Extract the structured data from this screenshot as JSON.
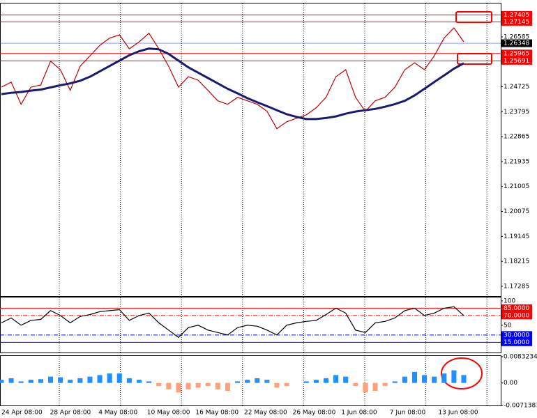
{
  "chart_data": [
    {
      "type": "line",
      "ylim": [
        1.1692,
        1.2783
      ],
      "yticks": [
        1.26585,
        1.24725,
        1.23795,
        1.22865,
        1.21935,
        1.21005,
        1.20075,
        1.19145,
        1.18215,
        1.17285
      ],
      "series": [
        {
          "color": "#c00000",
          "values": [
            1.2471,
            1.249,
            1.2407,
            1.2471,
            1.2479,
            1.2568,
            1.2536,
            1.2459,
            1.2549,
            1.2588,
            1.2627,
            1.2654,
            1.2666,
            1.2614,
            1.264,
            1.2672,
            1.2614,
            1.2549,
            1.2471,
            1.251,
            1.2497,
            1.2459,
            1.242,
            1.2407,
            1.2433,
            1.242,
            1.2407,
            1.2381,
            1.2316,
            1.2342,
            1.2355,
            1.2368,
            1.2394,
            1.2433,
            1.251,
            1.2536,
            1.2433,
            1.2381,
            1.242,
            1.2433,
            1.2471,
            1.2536,
            1.2562,
            1.2536,
            1.2588,
            1.2654,
            1.2692,
            1.264
          ]
        },
        {
          "color": "#1a1a6e",
          "values": [
            1.2445,
            1.245,
            1.2453,
            1.2458,
            1.2462,
            1.247,
            1.2478,
            1.2485,
            1.2495,
            1.251,
            1.253,
            1.255,
            1.257,
            1.259,
            1.2605,
            1.2615,
            1.2612,
            1.2595,
            1.257,
            1.2545,
            1.2525,
            1.2505,
            1.2485,
            1.2465,
            1.2448,
            1.243,
            1.2415,
            1.24,
            1.2385,
            1.237,
            1.236,
            1.2352,
            1.2352,
            1.2356,
            1.2362,
            1.2372,
            1.238,
            1.2385,
            1.239,
            1.2398,
            1.2408,
            1.242,
            1.244,
            1.2465,
            1.249,
            1.2515,
            1.254,
            1.256
          ]
        }
      ],
      "levels": [
        1.27405,
        1.27145,
        1.25965,
        1.25691
      ],
      "level_color": "#ff0000",
      "current_price": 1.26348,
      "current_price_color": "#4060ff",
      "xlabels": [
        "24 Apr 08:00",
        "28 Apr 08:00",
        "4 May 08:00",
        "10 May 08:00",
        "16 May 08:00",
        "22 May 08:00",
        "26 May 08:00",
        "1 Jun 08:00",
        "7 Jun 08:00",
        "13 Jun 08:00"
      ]
    },
    {
      "type": "line",
      "ylim": [
        -6,
        107
      ],
      "yticks": [
        100,
        50
      ],
      "series": [
        {
          "color": "#000000",
          "values": [
            55,
            65,
            50,
            60,
            62,
            80,
            70,
            55,
            68,
            72,
            78,
            80,
            82,
            60,
            70,
            75,
            55,
            40,
            25,
            45,
            50,
            40,
            35,
            30,
            45,
            50,
            48,
            40,
            30,
            50,
            55,
            58,
            60,
            72,
            85,
            75,
            40,
            35,
            55,
            58,
            65,
            80,
            85,
            70,
            75,
            85,
            88,
            70
          ]
        }
      ],
      "levels": [
        {
          "value": 85,
          "label": "85.0000"
        },
        {
          "value": 70,
          "label": "70.0000"
        },
        {
          "value": 30,
          "label": "30.0000"
        },
        {
          "value": 15,
          "label": "15.0000"
        }
      ],
      "level_colors": [
        "#ff0000",
        "#ff0000",
        "#0000ff",
        "#0000ff"
      ]
    },
    {
      "type": "bar",
      "ylim": [
        -0.0071383,
        0.0083234
      ],
      "yticks": [
        0.0083234,
        {
          "value": 0,
          "label": "0.00"
        },
        -0.0071383
      ],
      "values": [
        0.001,
        0.0015,
        0.0005,
        0.001,
        0.0012,
        0.002,
        0.0018,
        0.001,
        0.0015,
        0.002,
        0.0025,
        0.003,
        0.003,
        0.0015,
        0.001,
        0.0005,
        -0.001,
        -0.002,
        -0.003,
        -0.002,
        -0.0015,
        -0.001,
        -0.002,
        -0.0025,
        0.0005,
        0.001,
        0.0015,
        0.001,
        -0.0015,
        -0.001,
        0,
        0.0005,
        0.001,
        0.0015,
        0.0025,
        0.002,
        -0.001,
        -0.003,
        -0.0025,
        -0.001,
        0.0005,
        0.002,
        0.0035,
        0.0025,
        0.002,
        0.003,
        0.004,
        0.0025
      ],
      "positive_color": "#1e90ff",
      "negative_color": "#ffa07a"
    }
  ]
}
